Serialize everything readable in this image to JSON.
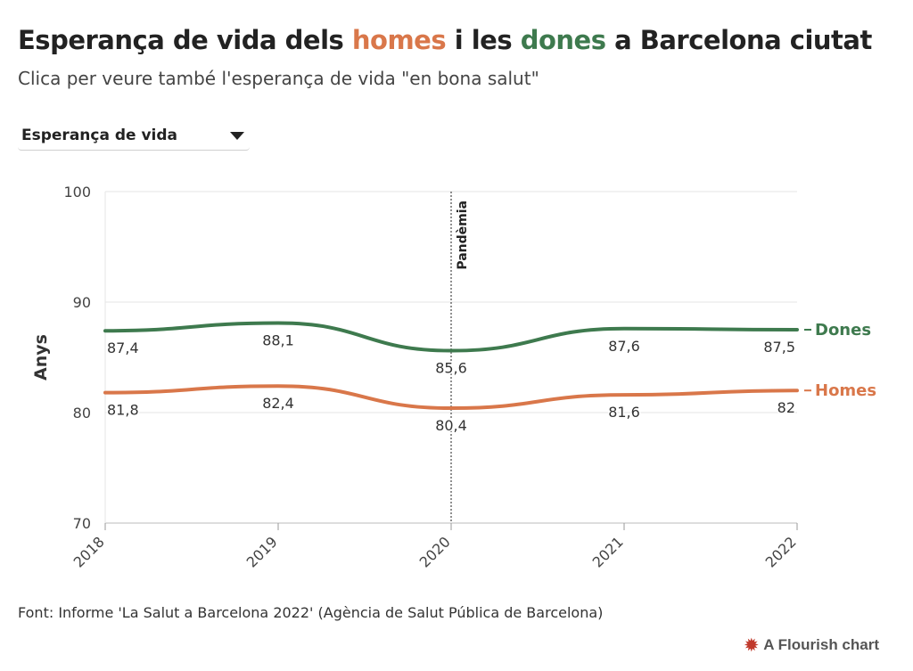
{
  "header": {
    "title_part1": "Esperança de vida dels ",
    "title_men": "homes",
    "title_part2": " i les ",
    "title_women": "dones",
    "title_part3": " a Barcelona ciutat",
    "subtitle": "Clica per veure també l'esperança de vida \"en bona salut\""
  },
  "controls": {
    "dropdown_selected": "Esperança de vida"
  },
  "footer": {
    "source": "Font: Informe 'La Salut a Barcelona 2022' (Agència de Salut Pública de Barcelona)",
    "credit": "A Flourish chart",
    "credit_icon": "flourish-star-icon"
  },
  "colors": {
    "men": "#d9774a",
    "women": "#3e7a4e",
    "grid": "#e6e6e6",
    "axis": "#999999"
  },
  "chart_data": {
    "type": "line",
    "x": [
      "2018",
      "2019",
      "2020",
      "2021",
      "2022"
    ],
    "series": [
      {
        "name": "Dones",
        "values": [
          87.4,
          88.1,
          85.6,
          87.6,
          87.5
        ],
        "labels": [
          "87,4",
          "88,1",
          "85,6",
          "87,6",
          "87,5"
        ]
      },
      {
        "name": "Homes",
        "values": [
          81.8,
          82.4,
          80.4,
          81.6,
          82.0
        ],
        "labels": [
          "81,8",
          "82,4",
          "80,4",
          "81,6",
          "82"
        ]
      }
    ],
    "ylabel": "Anys",
    "ylim": [
      70,
      100
    ],
    "yticks": [
      70,
      80,
      90,
      100
    ],
    "annotation": {
      "x": "2020",
      "label": "Pandèmia"
    },
    "grid": true,
    "legend": "end-of-line labels"
  }
}
